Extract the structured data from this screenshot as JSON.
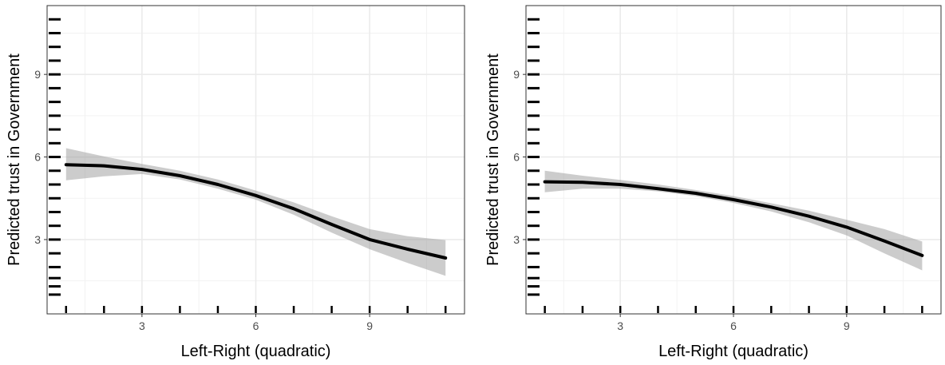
{
  "chart_data": [
    {
      "type": "line",
      "xlabel": "Left-Right (quadratic)",
      "ylabel": "Predicted trust in Government",
      "xlim": [
        0.5,
        11.5
      ],
      "ylim": [
        0.3,
        11.5
      ],
      "xticks": [
        3,
        6,
        9
      ],
      "yticks": [
        3,
        6,
        9
      ],
      "grid": true,
      "series": [
        {
          "x": [
            1,
            2,
            3,
            4,
            5,
            6,
            7,
            8,
            9,
            10,
            11
          ],
          "y": [
            5.72,
            5.68,
            5.55,
            5.32,
            5.0,
            4.6,
            4.12,
            3.55,
            3.0,
            2.65,
            2.33
          ],
          "lower": [
            5.15,
            5.3,
            5.38,
            5.18,
            4.85,
            4.45,
            3.9,
            3.25,
            2.65,
            2.15,
            1.68
          ],
          "upper": [
            6.32,
            6.02,
            5.75,
            5.5,
            5.18,
            4.78,
            4.35,
            3.85,
            3.38,
            3.12,
            2.98
          ]
        }
      ],
      "rug_x": [
        1,
        2,
        3,
        4,
        5,
        6,
        7,
        8,
        9,
        10,
        11
      ],
      "rug_y": [
        1,
        1.3,
        1.6,
        2,
        2.5,
        3,
        3.5,
        4,
        4.5,
        5,
        5.5,
        6,
        6.5,
        7,
        7.5,
        8,
        8.5,
        9,
        9.5,
        10,
        10.5,
        11
      ]
    },
    {
      "type": "line",
      "xlabel": "Left-Right (quadratic)",
      "ylabel": "Predicted trust in Government",
      "xlim": [
        0.5,
        11.5
      ],
      "ylim": [
        0.3,
        11.5
      ],
      "xticks": [
        3,
        6,
        9
      ],
      "yticks": [
        3,
        6,
        9
      ],
      "grid": true,
      "series": [
        {
          "x": [
            1,
            2,
            3,
            4,
            5,
            6,
            7,
            8,
            9,
            10,
            11
          ],
          "y": [
            5.1,
            5.08,
            5.0,
            4.85,
            4.68,
            4.45,
            4.18,
            3.85,
            3.45,
            2.95,
            2.42
          ],
          "lower": [
            4.72,
            4.85,
            4.85,
            4.75,
            4.58,
            4.33,
            4.02,
            3.63,
            3.15,
            2.5,
            1.88
          ],
          "upper": [
            5.5,
            5.32,
            5.17,
            5.0,
            4.8,
            4.58,
            4.32,
            4.05,
            3.72,
            3.38,
            2.93
          ]
        }
      ],
      "rug_x": [
        1,
        2,
        3,
        4,
        5,
        6,
        7,
        8,
        9,
        10,
        11
      ],
      "rug_y": [
        1,
        1.3,
        1.6,
        2,
        2.5,
        3,
        3.5,
        4,
        4.5,
        5,
        5.5,
        6,
        6.5,
        7,
        7.5,
        8,
        8.5,
        9,
        9.5,
        10,
        10.5,
        11
      ]
    }
  ]
}
